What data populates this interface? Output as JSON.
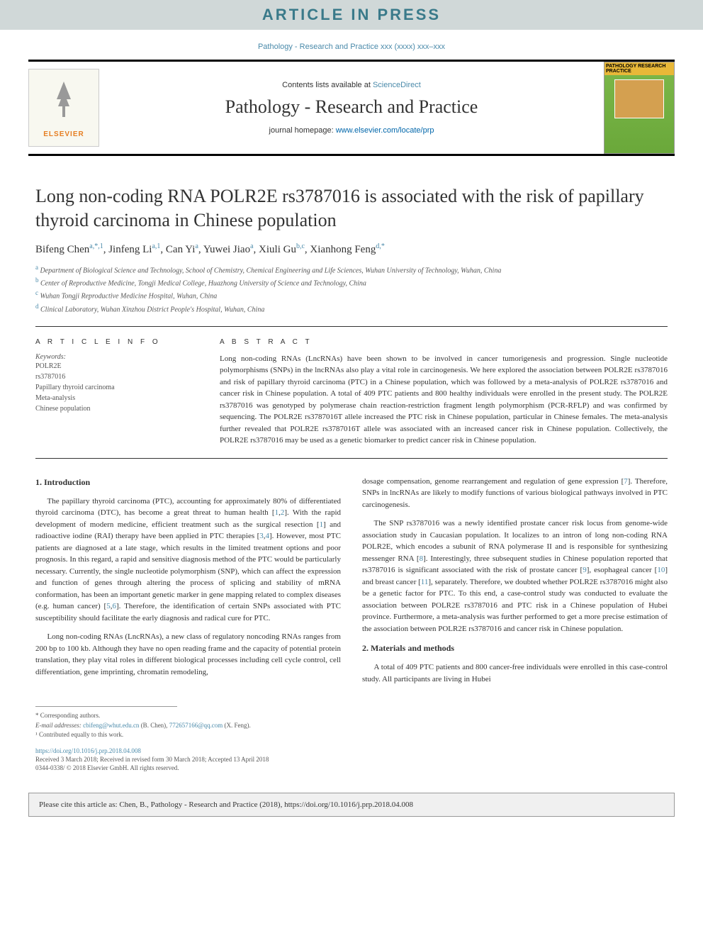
{
  "header": {
    "banner": "ARTICLE IN PRESS",
    "journal_ref_top": "Pathology - Research and Practice xxx (xxxx) xxx–xxx",
    "contents_lists_prefix": "Contents lists available at ",
    "contents_lists_link": "ScienceDirect",
    "journal_title": "Pathology - Research and Practice",
    "homepage_prefix": "journal homepage: ",
    "homepage_link": "www.elsevier.com/locate/prp",
    "elsevier_label": "ELSEVIER",
    "cover_label": "PATHOLOGY RESEARCH PRACTICE"
  },
  "article": {
    "title": "Long non-coding RNA POLR2E rs3787016 is associated with the risk of papillary thyroid carcinoma in Chinese population",
    "authors_html": "Bifeng Chen<sup>a,*,1</sup>, Jinfeng Li<sup>a,1</sup>, Can Yi<sup>a</sup>, Yuwei Jiao<sup>a</sup>, Xiuli Gu<sup>b,c</sup>, Xianhong Feng<sup>d,*</sup>",
    "affiliations": [
      {
        "sup": "a",
        "text": "Department of Biological Science and Technology, School of Chemistry, Chemical Engineering and Life Sciences, Wuhan University of Technology, Wuhan, China"
      },
      {
        "sup": "b",
        "text": "Center of Reproductive Medicine, Tongji Medical College, Huazhong University of Science and Technology, China"
      },
      {
        "sup": "c",
        "text": "Wuhan Tongji Reproductive Medicine Hospital, Wuhan, China"
      },
      {
        "sup": "d",
        "text": "Clinical Laboratory, Wuhan Xinzhou District People's Hospital, Wuhan, China"
      }
    ]
  },
  "info": {
    "article_info_label": "A R T I C L E  I N F O",
    "keywords_label": "Keywords:",
    "keywords": [
      "POLR2E",
      "rs3787016",
      "Papillary thyroid carcinoma",
      "Meta-analysis",
      "Chinese population"
    ],
    "abstract_label": "A B S T R A C T",
    "abstract_text": "Long non-coding RNAs (LncRNAs) have been shown to be involved in cancer tumorigenesis and progression. Single nucleotide polymorphisms (SNPs) in the lncRNAs also play a vital role in carcinogenesis. We here explored the association between POLR2E rs3787016 and risk of papillary thyroid carcinoma (PTC) in a Chinese population, which was followed by a meta-analysis of POLR2E rs3787016 and cancer risk in Chinese population. A total of 409 PTC patients and 800 healthy individuals were enrolled in the present study. The POLR2E rs3787016 was genotyped by polymerase chain reaction-restriction fragment length polymorphism (PCR-RFLP) and was confirmed by sequencing. The POLR2E rs3787016T allele increased the PTC risk in Chinese population, particular in Chinese females. The meta-analysis further revealed that POLR2E rs3787016T allele was associated with an increased cancer risk in Chinese population. Collectively, the POLR2E rs3787016 may be used as a genetic biomarker to predict cancer risk in Chinese population."
  },
  "body": {
    "intro_heading": "1. Introduction",
    "methods_heading": "2. Materials and methods",
    "left_paragraphs": [
      "The papillary thyroid carcinoma (PTC), accounting for approximately 80% of differentiated thyroid carcinoma (DTC), has become a great threat to human health [<a>1</a>,<a>2</a>]. With the rapid development of modern medicine, efficient treatment such as the surgical resection [<a>1</a>] and radioactive iodine (RAI) therapy have been applied in PTC therapies [<a>3</a>,<a>4</a>]. However, most PTC patients are diagnosed at a late stage, which results in the limited treatment options and poor prognosis. In this regard, a rapid and sensitive diagnosis method of the PTC would be particularly necessary. Currently, the single nucleotide polymorphism (SNP), which can affect the expression and function of genes through altering the process of splicing and stability of mRNA conformation, has been an important genetic marker in gene mapping related to complex diseases (e.g. human cancer) [<a>5</a>,<a>6</a>]. Therefore, the identification of certain SNPs associated with PTC susceptibility should facilitate the early diagnosis and radical cure for PTC.",
      "Long non-coding RNAs (LncRNAs), a new class of regulatory noncoding RNAs ranges from 200 bp to 100 kb. Although they have no open reading frame and the capacity of potential protein translation, they play vital roles in different biological processes including cell cycle control, cell differentiation, gene imprinting, chromatin remodeling,"
    ],
    "right_paragraphs_before_methods": [
      "dosage compensation, genome rearrangement and regulation of gene expression [<a>7</a>]. Therefore, SNPs in lncRNAs are likely to modify functions of various biological pathways involved in PTC carcinogenesis.",
      "The SNP rs3787016 was a newly identified prostate cancer risk locus from genome-wide association study in Caucasian population. It localizes to an intron of long non-coding RNA POLR2E, which encodes a subunit of RNA polymerase II and is responsible for synthesizing messenger RNA [<a>8</a>]. Interestingly, three subsequent studies in Chinese population reported that rs3787016 is significant associated with the risk of prostate cancer [<a>9</a>], esophageal cancer [<a>10</a>] and breast cancer [<a>11</a>], separately. Therefore, we doubted whether POLR2E rs3787016 might also be a genetic factor for PTC. To this end, a case-control study was conducted to evaluate the association between POLR2E rs3787016 and PTC risk in a Chinese population of Hubei province. Furthermore, a meta-analysis was further performed to get a more precise estimation of the association between POLR2E rs3787016 and cancer risk in Chinese population."
    ],
    "methods_paragraph": "A total of 409 PTC patients and 800 cancer-free individuals were enrolled in this case-control study. All participants are living in Hubei"
  },
  "footer": {
    "corresponding": "* Corresponding authors.",
    "emails_prefix": "E-mail addresses: ",
    "email1": "cbifeng@whut.edu.cn",
    "email1_name": " (B. Chen), ",
    "email2": "772657166@qq.com",
    "email2_name": " (X. Feng).",
    "contributed": "¹ Contributed equally to this work.",
    "doi": "https://doi.org/10.1016/j.prp.2018.04.008",
    "received": "Received 3 March 2018; Received in revised form 30 March 2018; Accepted 13 April 2018",
    "copyright": "0344-0338/ © 2018 Elsevier GmbH. All rights reserved.",
    "cite_box": "Please cite this article as: Chen, B., Pathology - Research and Practice (2018), https://doi.org/10.1016/j.prp.2018.04.008"
  },
  "colors": {
    "banner_bg": "#d0d8d8",
    "banner_text": "#3a7a8a",
    "link": "#4a8aaa",
    "elsevier_orange": "#e67e22",
    "cover_green_top": "#7db84a",
    "cover_green_bottom": "#6aa83a",
    "cover_yellow": "#e8b838",
    "cite_bg": "#f0f0f0"
  }
}
